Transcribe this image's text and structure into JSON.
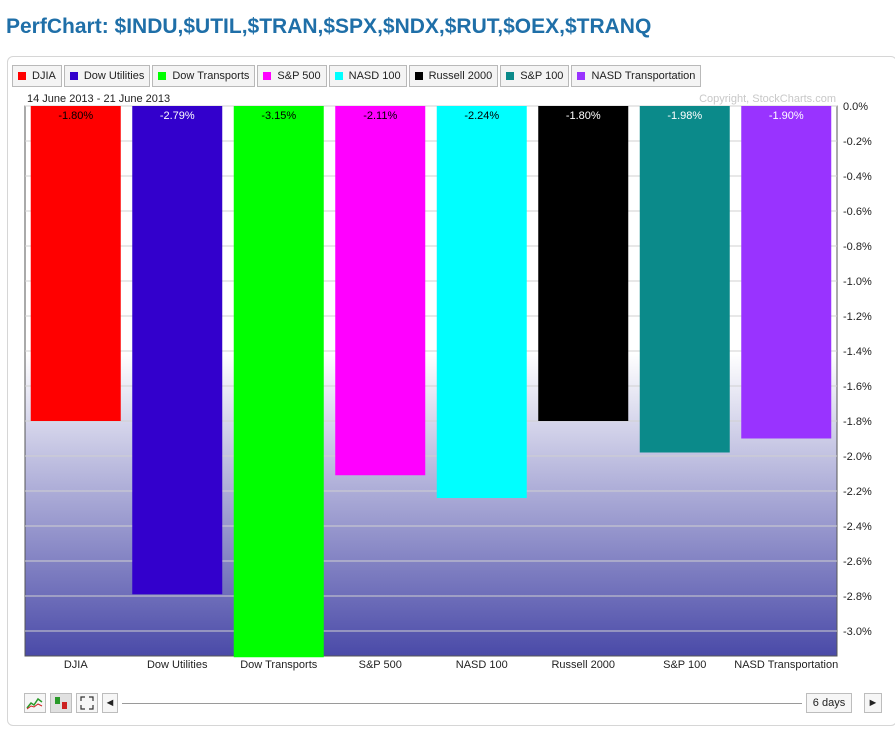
{
  "page": {
    "title": "PerfChart: $INDU,$UTIL,$TRAN,$SPX,$NDX,$RUT,$OEX,$TRANQ"
  },
  "header": {
    "date_range": "14 June 2013 - 21 June 2013",
    "copyright": "Copyright, StockCharts.com"
  },
  "colors": {
    "title": "#1f6fa8",
    "gradient_top": "#ffffff",
    "gradient_bottom": "#4a4aa8"
  },
  "chart_data": {
    "type": "bar",
    "categories": [
      "DJIA",
      "Dow Utilities",
      "Dow Transports",
      "S&P 500",
      "NASD 100",
      "Russell 2000",
      "S&P 100",
      "NASD Transportation"
    ],
    "series": [
      {
        "values": [
          -1.8,
          -2.79,
          -3.15,
          -2.11,
          -2.24,
          -1.8,
          -1.98,
          -1.9
        ],
        "labels": [
          "-1.80%",
          "-2.79%",
          "-3.15%",
          "-2.11%",
          "-2.24%",
          "-1.80%",
          "-1.98%",
          "-1.90%"
        ],
        "colors": [
          "#ff0000",
          "#3300cc",
          "#00ff00",
          "#ff00ff",
          "#00ffff",
          "#000000",
          "#0b8a8a",
          "#9933ff"
        ],
        "label_colors": [
          "#000000",
          "#ffffff",
          "#000000",
          "#000000",
          "#000000",
          "#ffffff",
          "#ffffff",
          "#ffffff"
        ]
      }
    ],
    "legend": [
      "DJIA",
      "Dow Utilities",
      "Dow Transports",
      "S&P 500",
      "NASD 100",
      "Russell 2000",
      "S&P 100",
      "NASD Transportation"
    ],
    "legend_placement": "top",
    "yticks": [
      "0.0%",
      "-0.2%",
      "-0.4%",
      "-0.6%",
      "-0.8%",
      "-1.0%",
      "-1.2%",
      "-1.4%",
      "-1.6%",
      "-1.8%",
      "-2.0%",
      "-2.2%",
      "-2.4%",
      "-2.6%",
      "-2.8%",
      "-3.0%"
    ],
    "ylim": [
      -3.15,
      0.0
    ],
    "grid": true,
    "title": "",
    "xlabel": "",
    "ylabel": ""
  },
  "controls": {
    "period": "6 days",
    "scroll_left": "◄",
    "scroll_right": "►"
  }
}
